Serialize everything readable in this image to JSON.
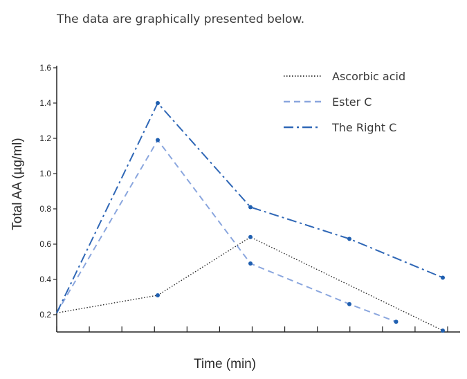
{
  "page": {
    "intro_text": "The data are graphically presented below."
  },
  "chart_data": {
    "type": "line",
    "title": "",
    "xlabel": "Time (min)",
    "ylabel": "Total AA (µg/ml)",
    "yticks": [
      "0.2",
      "0.4",
      "0.6",
      "0.8",
      "1.0",
      "1.2",
      "1.4",
      "1.6"
    ],
    "ylim": [
      0.2,
      1.6
    ],
    "grid": false,
    "legend_position": "top-right",
    "series": [
      {
        "name": "Ascorbic acid",
        "style": "dotted",
        "color": "#2b2b2b",
        "marker_color": "#1f5fb0",
        "points": [
          [
            0,
            0.21
          ],
          [
            1,
            0.31
          ],
          [
            2,
            0.64
          ],
          [
            4,
            0.11
          ]
        ]
      },
      {
        "name": "Ester C",
        "style": "dashed",
        "color": "#8aa6de",
        "marker_color": "#1f5fb0",
        "points": [
          [
            0,
            0.21
          ],
          [
            1,
            1.19
          ],
          [
            2,
            0.49
          ],
          [
            3,
            0.26
          ],
          [
            3.5,
            0.16
          ]
        ]
      },
      {
        "name": "The Right C",
        "style": "dashdot",
        "color": "#2f67b6",
        "marker_color": "#1f5fb0",
        "points": [
          [
            0,
            0.21
          ],
          [
            1,
            1.4
          ],
          [
            2,
            0.81
          ],
          [
            3,
            0.63
          ],
          [
            4,
            0.41
          ]
        ]
      }
    ]
  }
}
